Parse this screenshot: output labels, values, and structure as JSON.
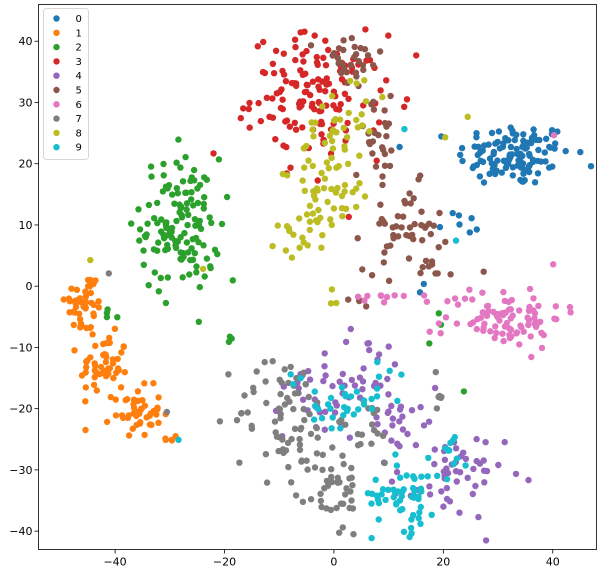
{
  "chart_data": {
    "type": "scatter",
    "title": "",
    "xlabel": "",
    "ylabel": "",
    "xlim": [
      -54,
      48
    ],
    "ylim": [
      -43,
      46
    ],
    "xticks": [
      -40,
      -20,
      0,
      20,
      40
    ],
    "yticks": [
      -40,
      -30,
      -20,
      -10,
      0,
      10,
      20,
      30,
      40
    ],
    "grid": false,
    "legend_position": "upper-left",
    "series": [
      {
        "name": "0",
        "color": "#1f77b4",
        "clusters": [
          {
            "cx": 33,
            "cy": 21.5,
            "sx": 5.2,
            "sy": 2.6,
            "n": 120
          },
          {
            "cx": 23,
            "cy": 10,
            "sx": 2.5,
            "sy": 2.5,
            "n": 7
          },
          {
            "cx": 15,
            "cy": -1,
            "sx": 1,
            "sy": 1,
            "n": 2
          }
        ]
      },
      {
        "name": "1",
        "color": "#ff7f0e",
        "clusters": [
          {
            "cx": -45.5,
            "cy": -3,
            "sx": 1.8,
            "sy": 2.8,
            "n": 45
          },
          {
            "cx": -42,
            "cy": -13,
            "sx": 2.2,
            "sy": 2.5,
            "n": 50
          },
          {
            "cx": -36,
            "cy": -20.5,
            "sx": 2.2,
            "sy": 2,
            "n": 45
          },
          {
            "cx": -30.5,
            "cy": -25,
            "sx": 1,
            "sy": 0.5,
            "n": 5
          }
        ]
      },
      {
        "name": "2",
        "color": "#2ca02c",
        "clusters": [
          {
            "cx": -28,
            "cy": 10,
            "sx": 3.6,
            "sy": 5.5,
            "n": 130
          },
          {
            "cx": -41,
            "cy": -4.5,
            "sx": 0.5,
            "sy": 0.5,
            "n": 4
          },
          {
            "cx": -19,
            "cy": 0.5,
            "sx": 0.5,
            "sy": 0.5,
            "n": 1
          },
          {
            "cx": -19,
            "cy": -8.5,
            "sx": 0.5,
            "sy": 0.5,
            "n": 3
          },
          {
            "cx": 18,
            "cy": -8,
            "sx": 1,
            "sy": 2,
            "n": 3
          },
          {
            "cx": 24,
            "cy": -17,
            "sx": 0.5,
            "sy": 0.5,
            "n": 1
          }
        ]
      },
      {
        "name": "3",
        "color": "#d62728",
        "clusters": [
          {
            "cx": -3,
            "cy": 31,
            "sx": 6,
            "sy": 5,
            "n": 140
          },
          {
            "cx": -23,
            "cy": 22,
            "sx": 0.5,
            "sy": 0.5,
            "n": 1
          },
          {
            "cx": 13,
            "cy": 29.5,
            "sx": 0.5,
            "sy": 0.5,
            "n": 2
          },
          {
            "cx": 3,
            "cy": 12,
            "sx": 0.5,
            "sy": 0.5,
            "n": 1
          }
        ]
      },
      {
        "name": "4",
        "color": "#9467bd",
        "clusters": [
          {
            "cx": 2,
            "cy": -16,
            "sx": 5.5,
            "sy": 4.5,
            "n": 60
          },
          {
            "cx": 13,
            "cy": -21.5,
            "sx": 2,
            "sy": 1.2,
            "n": 15
          },
          {
            "cx": 21,
            "cy": -31,
            "sx": 5,
            "sy": 3.5,
            "n": 55
          }
        ]
      },
      {
        "name": "5",
        "color": "#8c564b",
        "clusters": [
          {
            "cx": 3,
            "cy": 36.5,
            "sx": 3,
            "sy": 2.5,
            "n": 30
          },
          {
            "cx": 8.5,
            "cy": 24.5,
            "sx": 2.5,
            "sy": 3,
            "n": 25
          },
          {
            "cx": 12.5,
            "cy": 9.5,
            "sx": 3.5,
            "sy": 3.5,
            "n": 50
          },
          {
            "cx": 18,
            "cy": 2,
            "sx": 1.5,
            "sy": 1.5,
            "n": 8
          },
          {
            "cx": 4,
            "cy": -2.5,
            "sx": 1.5,
            "sy": 0.5,
            "n": 4
          },
          {
            "cx": 28,
            "cy": 2.5,
            "sx": 0.5,
            "sy": 0.5,
            "n": 1
          }
        ]
      },
      {
        "name": "6",
        "color": "#e377c2",
        "clusters": [
          {
            "cx": 31,
            "cy": -5,
            "sx": 5.5,
            "sy": 2.5,
            "n": 90
          },
          {
            "cx": 10,
            "cy": -1.5,
            "sx": 3.5,
            "sy": 0.8,
            "n": 10
          },
          {
            "cx": 40,
            "cy": 24,
            "sx": 0.5,
            "sy": 0.5,
            "n": 1
          }
        ]
      },
      {
        "name": "7",
        "color": "#7f7f7f",
        "clusters": [
          {
            "cx": -9,
            "cy": -21,
            "sx": 4.5,
            "sy": 5,
            "n": 70
          },
          {
            "cx": 0,
            "cy": -33,
            "sx": 2.5,
            "sy": 4,
            "n": 45
          },
          {
            "cx": 6,
            "cy": -24,
            "sx": 3,
            "sy": 3,
            "n": 15
          },
          {
            "cx": 19,
            "cy": -18,
            "sx": 0.8,
            "sy": 2,
            "n": 6
          },
          {
            "cx": -41,
            "cy": 1.5,
            "sx": 0.5,
            "sy": 0.5,
            "n": 1
          },
          {
            "cx": -31,
            "cy": -21,
            "sx": 0.5,
            "sy": 0.5,
            "n": 1
          }
        ]
      },
      {
        "name": "8",
        "color": "#bcbd22",
        "clusters": [
          {
            "cx": 0,
            "cy": 19,
            "sx": 3.5,
            "sy": 5,
            "n": 65
          },
          {
            "cx": -6,
            "cy": 8.5,
            "sx": 3,
            "sy": 2,
            "n": 20
          },
          {
            "cx": 4,
            "cy": 30,
            "sx": 3,
            "sy": 3,
            "n": 12
          },
          {
            "cx": -45,
            "cy": 4.5,
            "sx": 0.5,
            "sy": 0.5,
            "n": 1
          },
          {
            "cx": -24,
            "cy": 3,
            "sx": 0.5,
            "sy": 0.5,
            "n": 1
          },
          {
            "cx": 0,
            "cy": -1,
            "sx": 1,
            "sy": 2,
            "n": 3
          },
          {
            "cx": 20,
            "cy": 24,
            "sx": 0.5,
            "sy": 0.5,
            "n": 1
          },
          {
            "cx": 25,
            "cy": 28,
            "sx": 0.5,
            "sy": 0.5,
            "n": 1
          }
        ]
      },
      {
        "name": "9",
        "color": "#17becf",
        "clusters": [
          {
            "cx": 13,
            "cy": -34,
            "sx": 3,
            "sy": 3,
            "n": 55
          },
          {
            "cx": 21,
            "cy": -27,
            "sx": 2.5,
            "sy": 2,
            "n": 12
          },
          {
            "cx": 2,
            "cy": -19.5,
            "sx": 3,
            "sy": 1.8,
            "n": 30
          },
          {
            "cx": -7,
            "cy": -15,
            "sx": 1.5,
            "sy": 1,
            "n": 3
          },
          {
            "cx": 11,
            "cy": -14,
            "sx": 1.5,
            "sy": 1,
            "n": 4
          },
          {
            "cx": -29,
            "cy": -25,
            "sx": 0.5,
            "sy": 0.5,
            "n": 1
          },
          {
            "cx": 13,
            "cy": 26,
            "sx": 0.5,
            "sy": 0.5,
            "n": 1
          },
          {
            "cx": 22,
            "cy": 7.5,
            "sx": 0.5,
            "sy": 0.5,
            "n": 1
          }
        ]
      }
    ]
  }
}
